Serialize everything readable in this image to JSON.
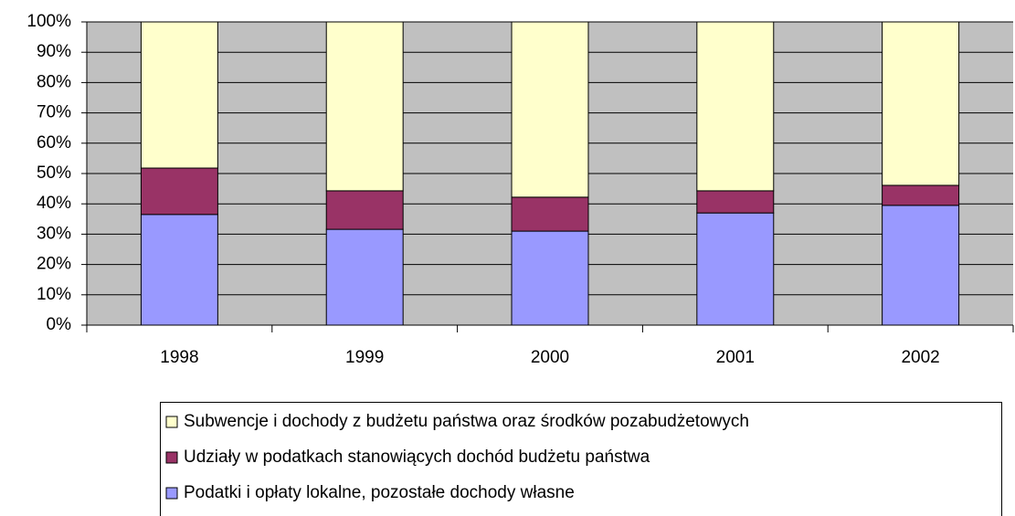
{
  "chart_data": {
    "type": "stacked_bar",
    "categories": [
      "1998",
      "1999",
      "2000",
      "2001",
      "2002"
    ],
    "series": [
      {
        "name": "Podatki i opłaty lokalne, pozostałe dochody własne",
        "color": "#9999ff",
        "values": [
          36.5,
          31.6,
          31,
          37,
          39.5
        ]
      },
      {
        "name": "Udziały w podatkach stanowiących dochód budżetu państwa",
        "color": "#993366",
        "values": [
          15.3,
          12.7,
          11.2,
          7.3,
          6.6
        ]
      },
      {
        "name": "Subwencje i dochody z budżetu państwa oraz środków pozabudżetowych",
        "color": "#ffffcc",
        "values": [
          48.2,
          55.7,
          57.8,
          55.7,
          53.9
        ]
      }
    ],
    "ylim": [
      0,
      100
    ],
    "yticks": [
      {
        "value": 0,
        "label": "0%"
      },
      {
        "value": 10,
        "label": "10%"
      },
      {
        "value": 20,
        "label": "20%"
      },
      {
        "value": 30,
        "label": "30%"
      },
      {
        "value": 40,
        "label": "40%"
      },
      {
        "value": 50,
        "label": "50%"
      },
      {
        "value": 60,
        "label": "60%"
      },
      {
        "value": 70,
        "label": "70%"
      },
      {
        "value": 80,
        "label": "80%"
      },
      {
        "value": 90,
        "label": "90%"
      },
      {
        "value": 100,
        "label": "100%"
      }
    ],
    "grid": true,
    "plot_background": "#c0c0c0",
    "legend": "bottom"
  }
}
